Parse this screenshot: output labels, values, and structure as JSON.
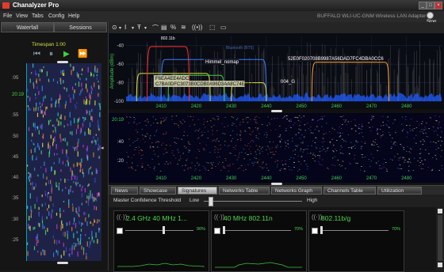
{
  "window": {
    "title": "Chanalyzer Pro",
    "min": "_",
    "max": "□",
    "close": "×"
  },
  "menu": [
    "File",
    "View",
    "Tabs",
    "Config",
    "Help"
  ],
  "adapter": "BUFFALO WLI-UC-GNM Wireless LAN Adapter",
  "stop_label": "Stop",
  "left_tabs": [
    "Waterfall",
    "Sessions"
  ],
  "timespan": "Timespan 1:00",
  "left_time_labels": [
    ":05",
    "20:19",
    ":55",
    ":50",
    ":45",
    ":40",
    ":35",
    ":30",
    ":25"
  ],
  "spectrum": {
    "y_label": "Amplitude (dBm)",
    "y_ticks": [
      "-40",
      "-60",
      "-80",
      "-100"
    ],
    "x_ticks": [
      "2410",
      "2420",
      "2430",
      "2440",
      "2450",
      "2460",
      "2470",
      "2480"
    ],
    "network_labels": [
      "Himmel_nomap",
      "52E0F020708B9987A56DAD7FC4DBA0CC6",
      "C7BA0DFC3073B0CDB0A96D3AA8C74EBEE",
      "F6EA4EE4ADCF",
      "004_G",
      "Bluetooth (BT5)",
      "802.11b"
    ]
  },
  "density": {
    "y_ticks": [
      "20:19",
      ":40",
      ":20"
    ],
    "x_ticks": [
      "2410",
      "2420",
      "2430",
      "2440",
      "2450",
      "2460",
      "2470",
      "2480"
    ]
  },
  "tabs": [
    {
      "label": "News",
      "active": false
    },
    {
      "label": "Showcase",
      "active": false
    },
    {
      "label": "Signatures",
      "active": true
    },
    {
      "label": "Networks Table",
      "active": false
    },
    {
      "label": "Networks Graph",
      "active": false
    },
    {
      "label": "Channels Table",
      "active": false
    },
    {
      "label": "Utilization",
      "active": false
    }
  ],
  "confidence": {
    "title": "Master Confidence Threshold",
    "low": "Low",
    "high": "High",
    "level_fraction": 0.05
  },
  "signatures": [
    {
      "title": "2.4 GHz 40 MHz 1...",
      "pct": "90%",
      "level": 0.55
    },
    {
      "title": "40 MHz 802.11n",
      "pct": "70%",
      "level": 0.0
    },
    {
      "title": "802.11b/g",
      "pct": "70%",
      "level": 0.0
    }
  ],
  "colors": {
    "accent_green": "#4dd84d",
    "timespan_yellow": "#d0e040",
    "spectrum_blue": "#2d7cff"
  }
}
